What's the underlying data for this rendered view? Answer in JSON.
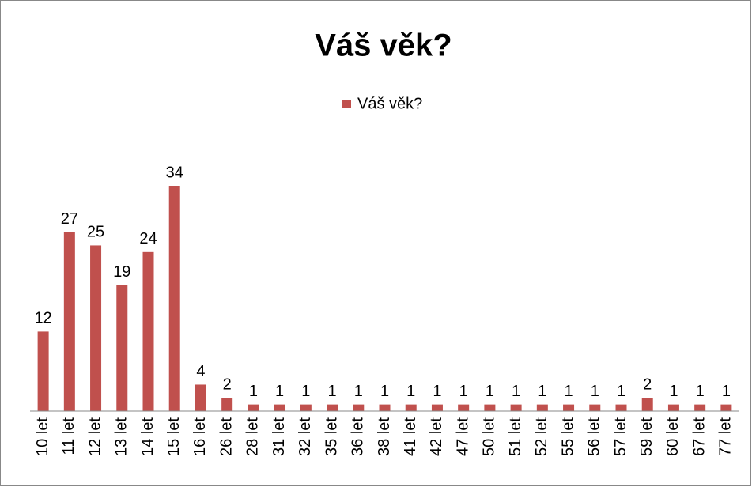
{
  "chart_data": {
    "type": "bar",
    "title": "Váš věk?",
    "series": [
      {
        "name": "Váš věk?",
        "color": "#c0504d",
        "values": [
          12,
          27,
          25,
          19,
          24,
          34,
          4,
          2,
          1,
          1,
          1,
          1,
          1,
          1,
          1,
          1,
          1,
          1,
          1,
          1,
          1,
          1,
          1,
          2,
          1,
          1,
          1
        ]
      }
    ],
    "categories": [
      "10 let",
      "11 let",
      "12 let",
      "13 let",
      "14 let",
      "15 let",
      "16 let",
      "26 let",
      "28 let",
      "31 let",
      "32 let",
      "35 let",
      "36 let",
      "38 let",
      "41 let",
      "42 let",
      "47 let",
      "50 let",
      "51 let",
      "52 let",
      "55 let",
      "56 let",
      "57 let",
      "59 let",
      "60 let",
      "67 let",
      "77 let"
    ],
    "legend": "top"
  }
}
